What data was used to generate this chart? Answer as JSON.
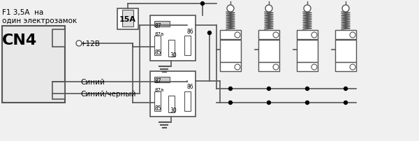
{
  "bg_color": "#f0f0f0",
  "line_color": "#555555",
  "text_color": "#000000",
  "title": "",
  "fig_width": 6.0,
  "fig_height": 2.03,
  "dpi": 100,
  "label_f1": "F1 3,5A  на\nодин электрозамок",
  "label_cn4": "CN4",
  "label_12v": "+12В",
  "label_blue": "Синий",
  "label_blue_black": "Синий/черный",
  "relay_labels": [
    "87",
    "87a",
    "86",
    "85",
    "30"
  ],
  "fuse_label": "15А"
}
